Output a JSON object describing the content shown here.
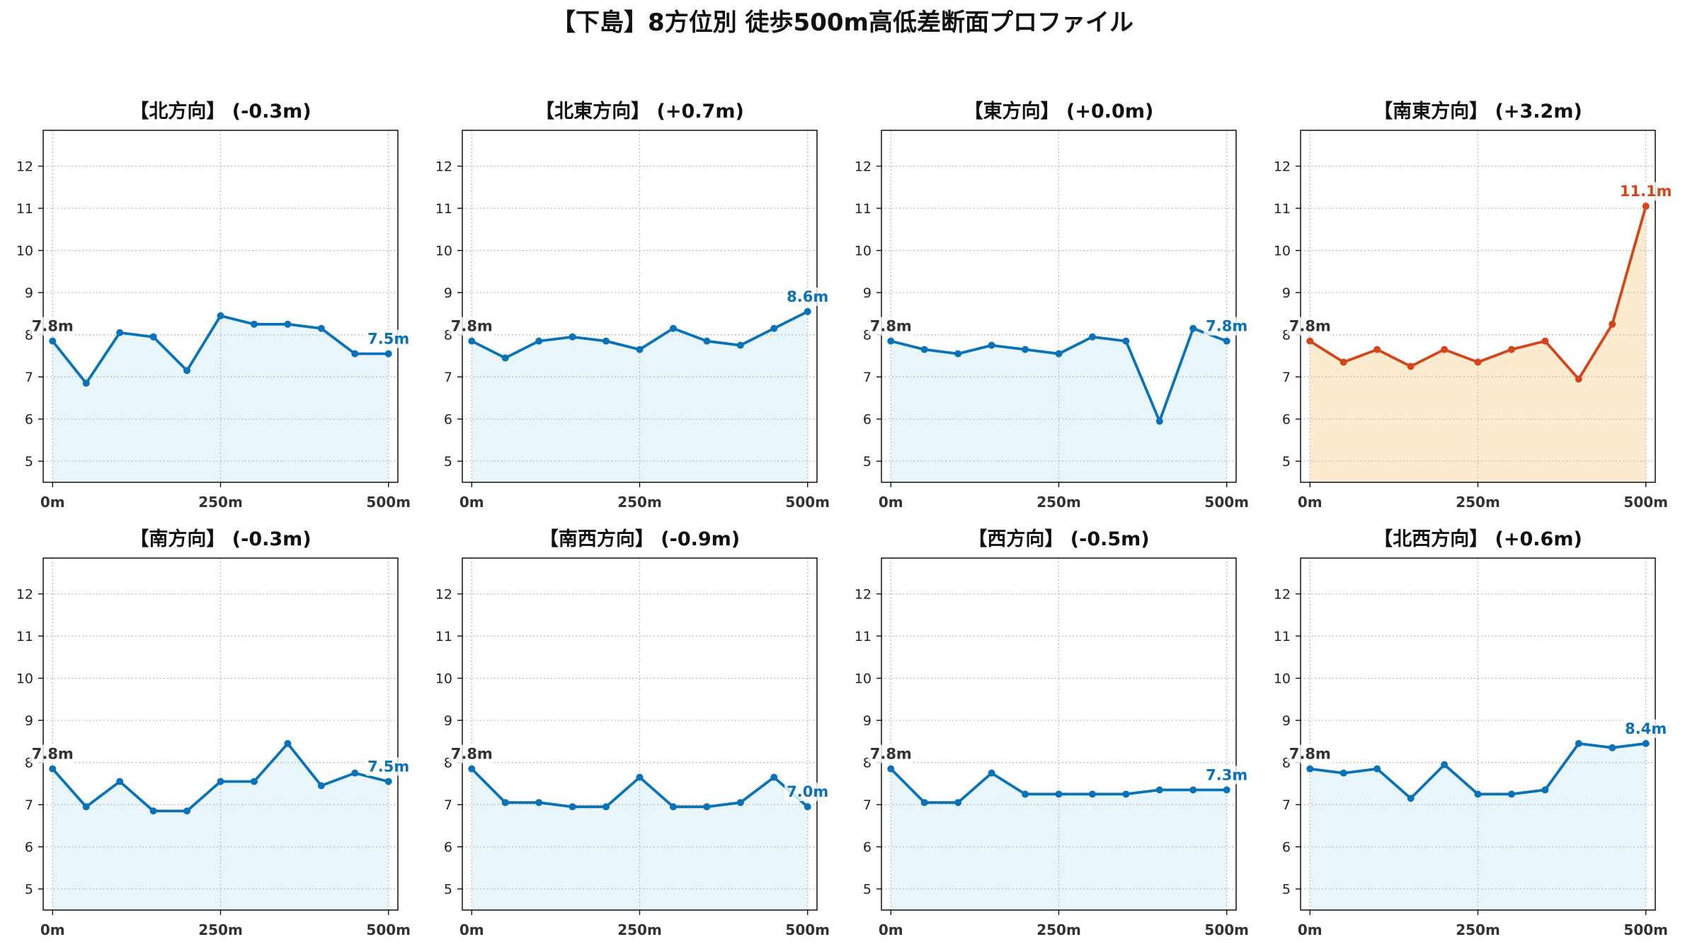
{
  "figure": {
    "title": "【下島】8方位別 徒歩500m高低差断面プロファイル"
  },
  "chart_data": [
    {
      "type": "area",
      "markers": true,
      "title": "【北方向】 (-0.3m)",
      "x": [
        0,
        50,
        100,
        150,
        200,
        250,
        300,
        350,
        400,
        450,
        500
      ],
      "y": [
        7.85,
        6.85,
        8.05,
        7.95,
        7.15,
        8.45,
        8.25,
        8.25,
        8.15,
        7.55,
        7.55
      ],
      "xlim": [
        -14,
        514
      ],
      "ylim": [
        4.5,
        12.85
      ],
      "x_ticks": [
        0,
        250,
        500
      ],
      "x_tick_labels": [
        "0m",
        "250m",
        "500m"
      ],
      "y_ticks": [
        5,
        6,
        7,
        8,
        9,
        10,
        11,
        12
      ],
      "grid": true,
      "color": "#0a72b6",
      "fill_color": "#e8f5fb",
      "annotations": [
        {
          "x": 0,
          "y": 7.85,
          "text": "7.8m",
          "color": "#333333"
        },
        {
          "x": 500,
          "y": 7.55,
          "text": "7.5m",
          "color": "#0a72b6"
        }
      ]
    },
    {
      "type": "area",
      "markers": true,
      "title": "【北東方向】 (+0.7m)",
      "x": [
        0,
        50,
        100,
        150,
        200,
        250,
        300,
        350,
        400,
        450,
        500
      ],
      "y": [
        7.85,
        7.45,
        7.85,
        7.95,
        7.85,
        7.65,
        8.15,
        7.85,
        7.75,
        8.15,
        8.55
      ],
      "xlim": [
        -14,
        514
      ],
      "ylim": [
        4.5,
        12.85
      ],
      "x_ticks": [
        0,
        250,
        500
      ],
      "x_tick_labels": [
        "0m",
        "250m",
        "500m"
      ],
      "y_ticks": [
        5,
        6,
        7,
        8,
        9,
        10,
        11,
        12
      ],
      "grid": true,
      "color": "#0a72b6",
      "fill_color": "#e8f5fb",
      "annotations": [
        {
          "x": 0,
          "y": 7.85,
          "text": "7.8m",
          "color": "#333333"
        },
        {
          "x": 500,
          "y": 8.55,
          "text": "8.6m",
          "color": "#0a72b6"
        }
      ]
    },
    {
      "type": "area",
      "markers": true,
      "title": "【東方向】 (+0.0m)",
      "x": [
        0,
        50,
        100,
        150,
        200,
        250,
        300,
        350,
        400,
        450,
        500
      ],
      "y": [
        7.85,
        7.65,
        7.55,
        7.75,
        7.65,
        7.55,
        7.95,
        7.85,
        5.95,
        8.15,
        7.85
      ],
      "xlim": [
        -14,
        514
      ],
      "ylim": [
        4.5,
        12.85
      ],
      "x_ticks": [
        0,
        250,
        500
      ],
      "x_tick_labels": [
        "0m",
        "250m",
        "500m"
      ],
      "y_ticks": [
        5,
        6,
        7,
        8,
        9,
        10,
        11,
        12
      ],
      "grid": true,
      "color": "#0a72b6",
      "fill_color": "#e8f5fb",
      "annotations": [
        {
          "x": 0,
          "y": 7.85,
          "text": "7.8m",
          "color": "#333333"
        },
        {
          "x": 500,
          "y": 7.85,
          "text": "7.8m",
          "color": "#0a72b6"
        }
      ]
    },
    {
      "type": "area",
      "markers": true,
      "title": "【南東方向】 (+3.2m)",
      "x": [
        0,
        50,
        100,
        150,
        200,
        250,
        300,
        350,
        400,
        450,
        500
      ],
      "y": [
        7.85,
        7.35,
        7.65,
        7.25,
        7.65,
        7.35,
        7.65,
        7.85,
        6.95,
        8.25,
        11.05
      ],
      "xlim": [
        -14,
        514
      ],
      "ylim": [
        4.5,
        12.85
      ],
      "x_ticks": [
        0,
        250,
        500
      ],
      "x_tick_labels": [
        "0m",
        "250m",
        "500m"
      ],
      "y_ticks": [
        5,
        6,
        7,
        8,
        9,
        10,
        11,
        12
      ],
      "grid": true,
      "color": "#d4461a",
      "fill_color": "#fdebd0",
      "annotations": [
        {
          "x": 0,
          "y": 7.85,
          "text": "7.8m",
          "color": "#333333"
        },
        {
          "x": 500,
          "y": 11.05,
          "text": "11.1m",
          "color": "#d4461a"
        }
      ]
    },
    {
      "type": "area",
      "markers": true,
      "title": "【南方向】 (-0.3m)",
      "x": [
        0,
        50,
        100,
        150,
        200,
        250,
        300,
        350,
        400,
        450,
        500
      ],
      "y": [
        7.85,
        6.95,
        7.55,
        6.85,
        6.85,
        7.55,
        7.55,
        8.45,
        7.45,
        7.75,
        7.55
      ],
      "xlim": [
        -14,
        514
      ],
      "ylim": [
        4.5,
        12.85
      ],
      "x_ticks": [
        0,
        250,
        500
      ],
      "x_tick_labels": [
        "0m",
        "250m",
        "500m"
      ],
      "y_ticks": [
        5,
        6,
        7,
        8,
        9,
        10,
        11,
        12
      ],
      "grid": true,
      "color": "#0a72b6",
      "fill_color": "#e8f5fb",
      "annotations": [
        {
          "x": 0,
          "y": 7.85,
          "text": "7.8m",
          "color": "#333333"
        },
        {
          "x": 500,
          "y": 7.55,
          "text": "7.5m",
          "color": "#0a72b6"
        }
      ]
    },
    {
      "type": "area",
      "markers": true,
      "title": "【南西方向】 (-0.9m)",
      "x": [
        0,
        50,
        100,
        150,
        200,
        250,
        300,
        350,
        400,
        450,
        500
      ],
      "y": [
        7.85,
        7.05,
        7.05,
        6.95,
        6.95,
        7.65,
        6.95,
        6.95,
        7.05,
        7.65,
        6.95
      ],
      "xlim": [
        -14,
        514
      ],
      "ylim": [
        4.5,
        12.85
      ],
      "x_ticks": [
        0,
        250,
        500
      ],
      "x_tick_labels": [
        "0m",
        "250m",
        "500m"
      ],
      "y_ticks": [
        5,
        6,
        7,
        8,
        9,
        10,
        11,
        12
      ],
      "grid": true,
      "color": "#0a72b6",
      "fill_color": "#e8f5fb",
      "annotations": [
        {
          "x": 0,
          "y": 7.85,
          "text": "7.8m",
          "color": "#333333"
        },
        {
          "x": 500,
          "y": 6.95,
          "text": "7.0m",
          "color": "#0a72b6"
        }
      ]
    },
    {
      "type": "area",
      "markers": true,
      "title": "【西方向】 (-0.5m)",
      "x": [
        0,
        50,
        100,
        150,
        200,
        250,
        300,
        350,
        400,
        450,
        500
      ],
      "y": [
        7.85,
        7.05,
        7.05,
        7.75,
        7.25,
        7.25,
        7.25,
        7.25,
        7.35,
        7.35,
        7.35
      ],
      "xlim": [
        -14,
        514
      ],
      "ylim": [
        4.5,
        12.85
      ],
      "x_ticks": [
        0,
        250,
        500
      ],
      "x_tick_labels": [
        "0m",
        "250m",
        "500m"
      ],
      "y_ticks": [
        5,
        6,
        7,
        8,
        9,
        10,
        11,
        12
      ],
      "grid": true,
      "color": "#0a72b6",
      "fill_color": "#e8f5fb",
      "annotations": [
        {
          "x": 0,
          "y": 7.85,
          "text": "7.8m",
          "color": "#333333"
        },
        {
          "x": 500,
          "y": 7.35,
          "text": "7.3m",
          "color": "#0a72b6"
        }
      ]
    },
    {
      "type": "area",
      "markers": true,
      "title": "【北西方向】 (+0.6m)",
      "x": [
        0,
        50,
        100,
        150,
        200,
        250,
        300,
        350,
        400,
        450,
        500
      ],
      "y": [
        7.85,
        7.75,
        7.85,
        7.15,
        7.95,
        7.25,
        7.25,
        7.35,
        8.45,
        8.35,
        8.45
      ],
      "xlim": [
        -14,
        514
      ],
      "ylim": [
        4.5,
        12.85
      ],
      "x_ticks": [
        0,
        250,
        500
      ],
      "x_tick_labels": [
        "0m",
        "250m",
        "500m"
      ],
      "y_ticks": [
        5,
        6,
        7,
        8,
        9,
        10,
        11,
        12
      ],
      "grid": true,
      "color": "#0a72b6",
      "fill_color": "#e8f5fb",
      "annotations": [
        {
          "x": 0,
          "y": 7.85,
          "text": "7.8m",
          "color": "#333333"
        },
        {
          "x": 500,
          "y": 8.45,
          "text": "8.4m",
          "color": "#0a72b6"
        }
      ]
    }
  ]
}
